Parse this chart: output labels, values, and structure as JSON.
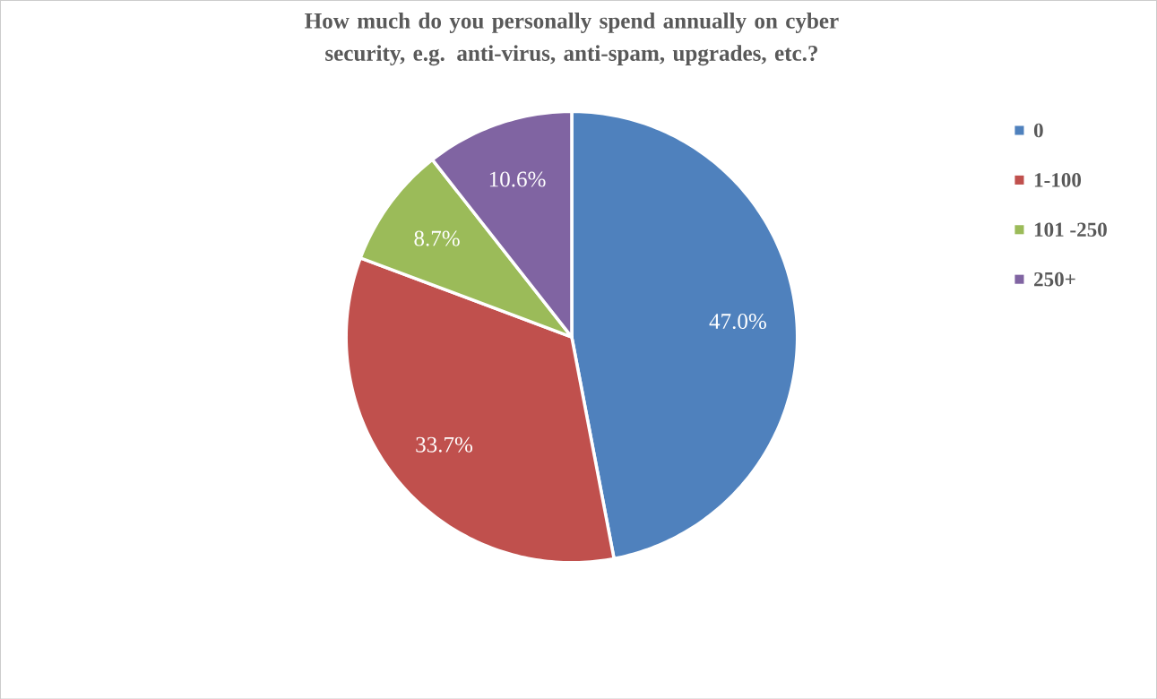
{
  "chart_data": {
    "type": "pie",
    "title": "How much do you personally spend annually on cyber security, e.g. anti-virus, anti-spam, upgrades, etc.?",
    "categories": [
      "0",
      "1-100",
      "101 -250",
      "250+"
    ],
    "values": [
      47.0,
      33.7,
      8.7,
      10.6
    ],
    "colors": [
      "#4f81bd",
      "#c0504d",
      "#9bbb59",
      "#8064a2"
    ],
    "value_labels": [
      "47.0%",
      "33.7%",
      "8.7%",
      "10.6%"
    ],
    "legend": "right"
  }
}
